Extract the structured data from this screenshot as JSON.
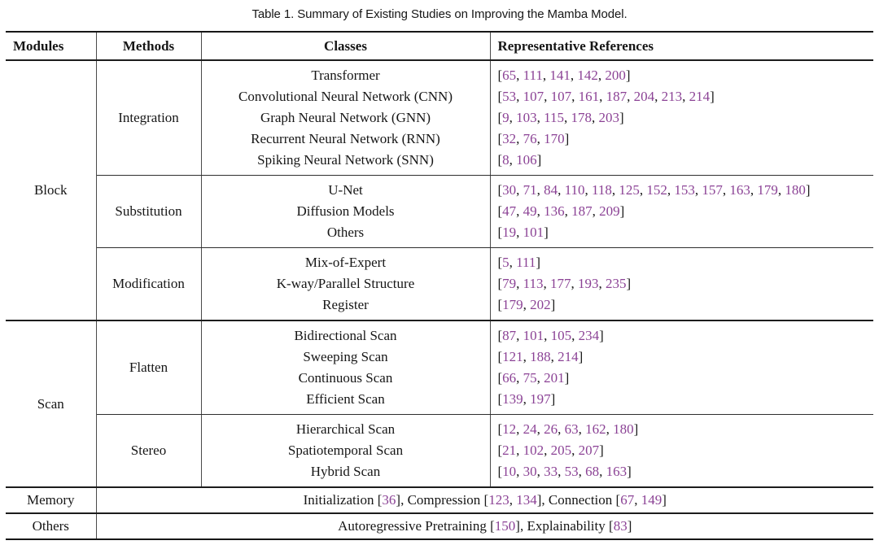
{
  "title": "Table 1. Summary of Existing Studies on Improving the Mamba Model.",
  "colors": {
    "citation_link": "#8b4295",
    "body_text": "#161616",
    "rule": "#1c1c1c"
  },
  "table": {
    "headers": [
      "Modules",
      "Methods",
      "Classes",
      "Representative References"
    ],
    "modules": [
      {
        "name": "Block",
        "groups": [
          {
            "method": "Integration",
            "rows": [
              {
                "class": "Transformer",
                "refs": [
                  65,
                  111,
                  141,
                  142,
                  200
                ]
              },
              {
                "class": "Convolutional Neural Network (CNN)",
                "refs": [
                  53,
                  107,
                  107,
                  161,
                  187,
                  204,
                  213,
                  214
                ]
              },
              {
                "class": "Graph Neural Network (GNN)",
                "refs": [
                  9,
                  103,
                  115,
                  178,
                  203
                ]
              },
              {
                "class": "Recurrent Neural Network (RNN)",
                "refs": [
                  32,
                  76,
                  170
                ]
              },
              {
                "class": "Spiking Neural Network (SNN)",
                "refs": [
                  8,
                  106
                ]
              }
            ]
          },
          {
            "method": "Substitution",
            "rows": [
              {
                "class": "U-Net",
                "refs": [
                  30,
                  71,
                  84,
                  110,
                  118,
                  125,
                  152,
                  153,
                  157,
                  163,
                  179,
                  180
                ]
              },
              {
                "class": "Diffusion Models",
                "refs": [
                  47,
                  49,
                  136,
                  187,
                  209
                ]
              },
              {
                "class": "Others",
                "refs": [
                  19,
                  101
                ]
              }
            ]
          },
          {
            "method": "Modification",
            "rows": [
              {
                "class": "Mix-of-Expert",
                "refs": [
                  5,
                  111
                ]
              },
              {
                "class": "K-way/Parallel Structure",
                "refs": [
                  79,
                  113,
                  177,
                  193,
                  235
                ]
              },
              {
                "class": "Register",
                "refs": [
                  179,
                  202
                ]
              }
            ]
          }
        ]
      },
      {
        "name": "Scan",
        "groups": [
          {
            "method": "Flatten",
            "rows": [
              {
                "class": "Bidirectional Scan",
                "refs": [
                  87,
                  101,
                  105,
                  234
                ]
              },
              {
                "class": "Sweeping Scan",
                "refs": [
                  121,
                  188,
                  214
                ]
              },
              {
                "class": "Continuous Scan",
                "refs": [
                  66,
                  75,
                  201
                ]
              },
              {
                "class": "Efficient Scan",
                "refs": [
                  139,
                  197
                ]
              }
            ]
          },
          {
            "method": "Stereo",
            "rows": [
              {
                "class": "Hierarchical Scan",
                "refs": [
                  12,
                  24,
                  26,
                  63,
                  162,
                  180
                ]
              },
              {
                "class": "Spatiotemporal Scan",
                "refs": [
                  21,
                  102,
                  205,
                  207
                ]
              },
              {
                "class": "Hybrid Scan",
                "refs": [
                  10,
                  30,
                  33,
                  53,
                  68,
                  163
                ]
              }
            ]
          }
        ]
      }
    ],
    "span_rows": [
      {
        "module": "Memory",
        "parts": [
          {
            "label": "Initialization",
            "refs": [
              36
            ]
          },
          {
            "label": "Compression",
            "refs": [
              123,
              134
            ]
          },
          {
            "label": "Connection",
            "refs": [
              67,
              149
            ]
          }
        ]
      },
      {
        "module": "Others",
        "parts": [
          {
            "label": "Autoregressive Pretraining",
            "refs": [
              150
            ]
          },
          {
            "label": "Explainability",
            "refs": [
              83
            ]
          }
        ]
      }
    ]
  }
}
